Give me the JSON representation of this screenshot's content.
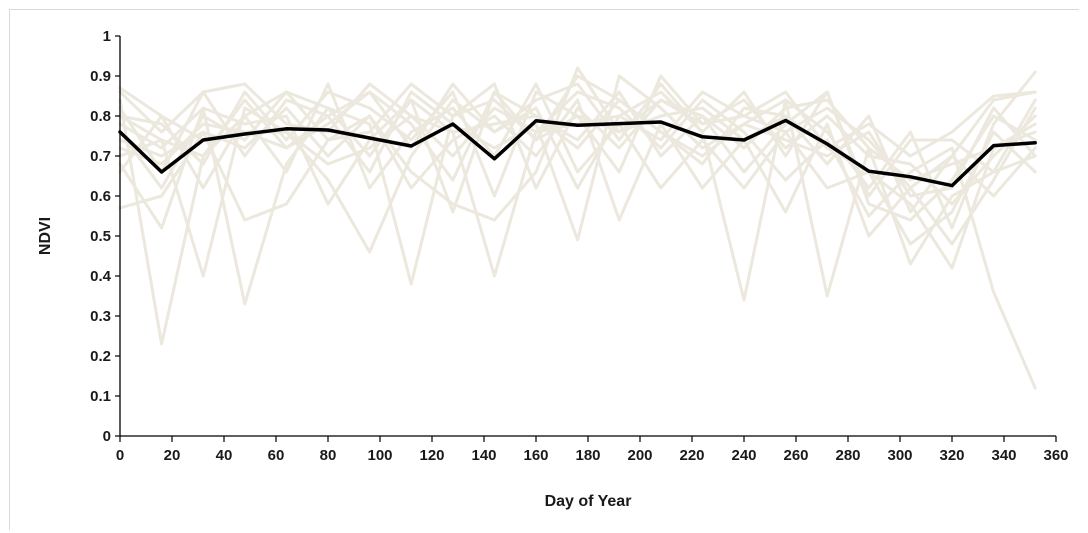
{
  "chart_data": {
    "type": "line",
    "title": "",
    "xlabel": "Day of Year",
    "ylabel": "NDVI",
    "xlim": [
      0,
      360
    ],
    "ylim": [
      0,
      1
    ],
    "x_ticks": [
      0,
      20,
      40,
      60,
      80,
      100,
      120,
      140,
      160,
      180,
      200,
      220,
      240,
      260,
      280,
      300,
      320,
      340,
      360
    ],
    "y_ticks": [
      "0",
      "0.1",
      "0.2",
      "0.3",
      "0.4",
      "0.5",
      "0.6",
      "0.7",
      "0.8",
      "0.9",
      "1"
    ],
    "grid": false,
    "legend": "none",
    "colors": {
      "background_series": "#ece8de",
      "mean_series": "#000000",
      "axis": "#000000",
      "frame": "#d9d9d9"
    },
    "x": [
      0,
      16,
      32,
      48,
      64,
      80,
      96,
      112,
      128,
      144,
      160,
      176,
      192,
      208,
      224,
      240,
      256,
      272,
      288,
      304,
      320,
      336,
      352
    ],
    "mean_series": {
      "values": [
        0.76,
        0.66,
        0.74,
        0.755,
        0.768,
        0.765,
        0.745,
        0.725,
        0.78,
        0.693,
        0.788,
        0.777,
        0.781,
        0.785,
        0.748,
        0.74,
        0.789,
        0.73,
        0.662,
        0.648,
        0.626,
        0.726,
        0.733
      ]
    },
    "background_series": [
      {
        "values": [
          0.87,
          0.8,
          0.74,
          0.76,
          0.72,
          0.78,
          0.86,
          0.78,
          0.64,
          0.86,
          0.74,
          0.8,
          0.76,
          0.84,
          0.78,
          0.8,
          0.76,
          0.82,
          0.74,
          0.62,
          0.7,
          0.84,
          0.86
        ]
      },
      {
        "values": [
          0.84,
          0.23,
          0.7,
          0.8,
          0.86,
          0.82,
          0.7,
          0.84,
          0.76,
          0.4,
          0.76,
          0.86,
          0.82,
          0.72,
          0.84,
          0.76,
          0.64,
          0.74,
          0.55,
          0.66,
          0.72,
          0.36,
          0.12
        ]
      },
      {
        "values": [
          0.7,
          0.74,
          0.4,
          0.82,
          0.76,
          0.64,
          0.46,
          0.7,
          0.84,
          0.76,
          0.82,
          0.62,
          0.8,
          0.86,
          0.76,
          0.34,
          0.84,
          0.35,
          0.72,
          0.43,
          0.6,
          0.66,
          0.7
        ]
      },
      {
        "values": [
          0.78,
          0.72,
          0.82,
          0.33,
          0.68,
          0.82,
          0.78,
          0.38,
          0.8,
          0.84,
          0.74,
          0.9,
          0.84,
          0.76,
          0.68,
          0.82,
          0.8,
          0.72,
          0.66,
          0.58,
          0.42,
          0.72,
          0.78
        ]
      },
      {
        "values": [
          0.57,
          0.6,
          0.76,
          0.54,
          0.58,
          0.74,
          0.8,
          0.66,
          0.58,
          0.54,
          0.66,
          0.92,
          0.76,
          0.8,
          0.82,
          0.74,
          0.56,
          0.78,
          0.5,
          0.62,
          0.48,
          0.64,
          0.82
        ]
      },
      {
        "values": [
          0.82,
          0.66,
          0.86,
          0.7,
          0.84,
          0.8,
          0.66,
          0.86,
          0.78,
          0.72,
          0.78,
          0.49,
          0.9,
          0.82,
          0.72,
          0.78,
          0.84,
          0.76,
          0.62,
          0.76,
          0.52,
          0.78,
          0.91
        ]
      },
      {
        "values": [
          0.68,
          0.52,
          0.82,
          0.78,
          0.8,
          0.58,
          0.74,
          0.84,
          0.56,
          0.86,
          0.8,
          0.74,
          0.86,
          0.7,
          0.8,
          0.66,
          0.78,
          0.86,
          0.58,
          0.54,
          0.64,
          0.8,
          0.74
        ]
      },
      {
        "values": [
          0.8,
          0.78,
          0.68,
          0.86,
          0.74,
          0.86,
          0.82,
          0.74,
          0.86,
          0.6,
          0.86,
          0.8,
          0.66,
          0.9,
          0.78,
          0.84,
          0.72,
          0.8,
          0.7,
          0.68,
          0.58,
          0.7,
          0.8
        ]
      },
      {
        "values": [
          0.74,
          0.7,
          0.76,
          0.72,
          0.82,
          0.7,
          0.8,
          0.62,
          0.74,
          0.8,
          0.7,
          0.84,
          0.54,
          0.78,
          0.62,
          0.74,
          0.8,
          0.68,
          0.8,
          0.56,
          0.7,
          0.6,
          0.72
        ]
      },
      {
        "values": [
          0.86,
          0.76,
          0.86,
          0.88,
          0.78,
          0.76,
          0.88,
          0.8,
          0.7,
          0.82,
          0.76,
          0.78,
          0.8,
          0.74,
          0.86,
          0.8,
          0.86,
          0.72,
          0.78,
          0.7,
          0.76,
          0.85,
          0.86
        ]
      },
      {
        "values": [
          0.66,
          0.8,
          0.62,
          0.8,
          0.66,
          0.88,
          0.62,
          0.76,
          0.82,
          0.7,
          0.88,
          0.66,
          0.78,
          0.62,
          0.74,
          0.62,
          0.76,
          0.62,
          0.66,
          0.48,
          0.56,
          0.76,
          0.66
        ]
      },
      {
        "values": [
          0.76,
          0.62,
          0.8,
          0.74,
          0.86,
          0.74,
          0.76,
          0.88,
          0.8,
          0.88,
          0.62,
          0.82,
          0.72,
          0.84,
          0.8,
          0.72,
          0.82,
          0.84,
          0.72,
          0.64,
          0.68,
          0.72,
          0.76
        ]
      },
      {
        "values": [
          0.8,
          0.74,
          0.7,
          0.84,
          0.72,
          0.8,
          0.86,
          0.72,
          0.88,
          0.76,
          0.84,
          0.88,
          0.74,
          0.88,
          0.76,
          0.86,
          0.7,
          0.86,
          0.6,
          0.74,
          0.74,
          0.66,
          0.84
        ]
      },
      {
        "values": [
          0.72,
          0.68,
          0.78,
          0.76,
          0.76,
          0.68,
          0.72,
          0.8,
          0.76,
          0.78,
          0.8,
          0.72,
          0.84,
          0.76,
          0.7,
          0.78,
          0.74,
          0.7,
          0.76,
          0.6,
          0.62,
          0.82,
          0.7
        ]
      }
    ]
  }
}
